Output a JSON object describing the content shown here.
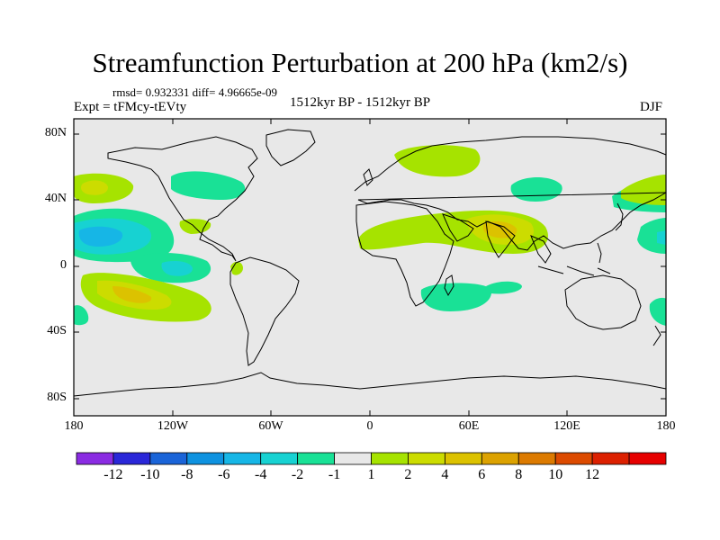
{
  "title": "Streamfunction Perturbation at 200 hPa (km2/s)",
  "stats_line": "rmsd= 0.932331  diff= 4.96665e-09",
  "experiment": "Expt = tFMcy-tEVty",
  "period": "1512kyr BP - 1512kyr BP",
  "season": "DJF",
  "lat_ticks": [
    "80N",
    "40N",
    "0",
    "40S",
    "80S"
  ],
  "lon_ticks": [
    "180",
    "120W",
    "60W",
    "0",
    "60E",
    "120E",
    "180"
  ],
  "colorbar": {
    "colors": [
      "#8a2be2",
      "#2a27d8",
      "#1a64d8",
      "#0e92e0",
      "#16b6e6",
      "#17d2d2",
      "#19e196",
      "#e8e8e8",
      "#a6e300",
      "#ccdc00",
      "#dcc200",
      "#dca200",
      "#dc7a00",
      "#dc4a00",
      "#dc2000",
      "#e60000"
    ],
    "labels": [
      "-12",
      "-10",
      "-8",
      "-6",
      "-4",
      "-2",
      "-1",
      "1",
      "2",
      "4",
      "6",
      "8",
      "10",
      "12"
    ]
  },
  "field_colors": {
    "background": "#e8e8e8",
    "neg1": "#19e196",
    "neg2": "#17d2d2",
    "neg3": "#16b6e6",
    "pos1": "#a6e300",
    "pos2": "#ccdc00",
    "pos3": "#dcc200"
  }
}
